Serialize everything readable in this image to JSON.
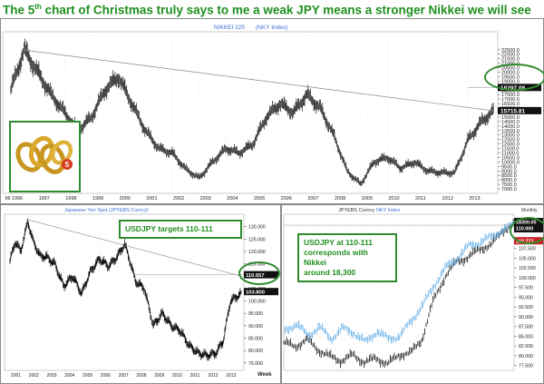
{
  "headline": {
    "pre": "The 5",
    "sup": "th",
    "post": " chart of Christmas truly says to me a weak JPY means a stronger Nikkei we will see"
  },
  "colors": {
    "green": "#1f8f1f",
    "blue": "#5aa9e6",
    "black": "#111111",
    "magenta": "#cc0099"
  },
  "top_chart_title": {
    "a": "NIKKEI 225",
    "b": "(NKY Index)"
  },
  "left_chart_title": "Japanese Yen Spot (JPYEBS Curncy)",
  "right_chart_title": {
    "a": "JPYEBS Curncy",
    "b": "NKY Index"
  },
  "callout_left": "USDJPY targets 110-111",
  "callout_right": [
    "USDJPY at 110-111",
    "corresponds with Nikkei",
    "around 18,300"
  ],
  "week_label": "Week",
  "right_top_label": "Monthly",
  "ring_icon": "gold-rings-icon",
  "chart_data": [
    {
      "type": "line",
      "name": "nikkei",
      "x": [
        1996,
        1996.5,
        1997,
        1997.5,
        1998,
        1998.5,
        1999,
        1999.5,
        2000,
        2000.5,
        2001,
        2001.5,
        2002,
        2002.5,
        2003,
        2003.5,
        2004,
        2004.5,
        2005,
        2005.5,
        2006,
        2006.5,
        2007,
        2007.5,
        2008,
        2008.5,
        2009,
        2009.5,
        2010,
        2010.5,
        2011,
        2011.5,
        2012,
        2012.5,
        2013,
        2013.5,
        2013.95
      ],
      "y": [
        18000,
        22500,
        20000,
        17500,
        15500,
        13500,
        15000,
        18000,
        19500,
        16500,
        13500,
        11500,
        11000,
        9200,
        8200,
        10000,
        11500,
        11000,
        12000,
        15000,
        16500,
        15500,
        17500,
        16000,
        13000,
        9000,
        7500,
        10000,
        10500,
        9300,
        10000,
        9000,
        8800,
        8800,
        12500,
        14500,
        15700
      ],
      "ylim": [
        6500,
        24500
      ],
      "yticks": [
        "7000.0",
        "7500.0",
        "8000.0",
        "8500.0",
        "9000.0",
        "9500.0",
        "10000.0",
        "10500.0",
        "11000.0",
        "11500.0",
        "12000.0",
        "12500.0",
        "13000.0",
        "13500.0",
        "14000.0",
        "14500.0",
        "15000.0",
        "15500.0",
        "16000.0",
        "16500.0",
        "17000.0",
        "17500.0",
        "18000.0",
        "18500.0",
        "19000.0",
        "19500.0",
        "20000.0",
        "20500.0",
        "21000.0",
        "21500.0",
        "22000.0",
        "22500.0"
      ],
      "xticks": [
        "96",
        "1996",
        "1997",
        "1998",
        "1999",
        "2000",
        "2001",
        "2002",
        "2003",
        "2004",
        "2005",
        "2006",
        "2007",
        "2008",
        "2009",
        "2010",
        "2011",
        "2012",
        "2013"
      ],
      "trendline": [
        [
          1996.4,
          22500
        ],
        [
          2013.95,
          15700
        ]
      ],
      "marker_label": "18297.08",
      "last_label": "15715.81"
    },
    {
      "type": "line",
      "name": "usdjpy",
      "x": [
        2001,
        2001.3,
        2001.6,
        2002,
        2002.3,
        2002.7,
        2003,
        2003.5,
        2004,
        2004.5,
        2005,
        2005.5,
        2006,
        2006.5,
        2007,
        2007.4,
        2007.7,
        2008,
        2008.5,
        2009,
        2009.5,
        2010,
        2010.5,
        2011,
        2011.5,
        2012,
        2012.5,
        2012.9,
        2013.3,
        2013.9
      ],
      "y": [
        116,
        124,
        120,
        132,
        124,
        118,
        118,
        115,
        106,
        110,
        103,
        112,
        117,
        114,
        118,
        123,
        116,
        108,
        105,
        90,
        95,
        90,
        88,
        82,
        79,
        78,
        79,
        84,
        100,
        103
      ],
      "ylim": [
        72,
        135
      ],
      "yticks": [
        "75.000",
        "80.000",
        "85.000",
        "90.000",
        "95.000",
        "100.000",
        "105.000",
        "110.000",
        "115.000",
        "120.000",
        "125.000",
        "130.000"
      ],
      "xticks": [
        "2001",
        "2002",
        "2003",
        "2004",
        "2005",
        "2006",
        "2007",
        "2008",
        "2009",
        "2010",
        "2011",
        "2012",
        "2013"
      ],
      "trendline": [
        [
          2001.9,
          133
        ],
        [
          2013.9,
          110
        ]
      ],
      "marker_label": "110.657",
      "last_label": "103.800"
    },
    {
      "type": "line",
      "name": "overlay",
      "series": [
        {
          "x": [
            0,
            0.05,
            0.1,
            0.15,
            0.2,
            0.25,
            0.3,
            0.35,
            0.4,
            0.45,
            0.5,
            0.55,
            0.6,
            0.65,
            0.7,
            0.75,
            0.8,
            0.85,
            0.9,
            0.95,
            1
          ],
          "y": [
            0.18,
            0.15,
            0.2,
            0.13,
            0.09,
            0.06,
            0.1,
            0.05,
            0.08,
            0.04,
            0.1,
            0.11,
            0.2,
            0.45,
            0.6,
            0.7,
            0.72,
            0.78,
            0.8,
            0.9,
            0.93
          ]
        },
        {
          "x": [
            0,
            0.05,
            0.1,
            0.15,
            0.2,
            0.25,
            0.3,
            0.35,
            0.4,
            0.45,
            0.5,
            0.55,
            0.6,
            0.65,
            0.7,
            0.75,
            0.8,
            0.85,
            0.9,
            0.95,
            1
          ],
          "y": [
            0.25,
            0.3,
            0.22,
            0.28,
            0.2,
            0.27,
            0.24,
            0.18,
            0.25,
            0.2,
            0.22,
            0.32,
            0.42,
            0.55,
            0.66,
            0.72,
            0.8,
            0.82,
            0.86,
            0.9,
            0.94
          ]
        }
      ],
      "yticks": [
        "77.500",
        "80.000",
        "82.500",
        "85.000",
        "87.500",
        "90.000",
        "92.500",
        "95.000",
        "97.500",
        "100.000",
        "102.500",
        "105.000",
        "107.500",
        "110.000",
        "112.500",
        "115.000"
      ],
      "marker_label": "18300.00",
      "marker_label_2": "110.000",
      "last_label": "102.777"
    }
  ]
}
